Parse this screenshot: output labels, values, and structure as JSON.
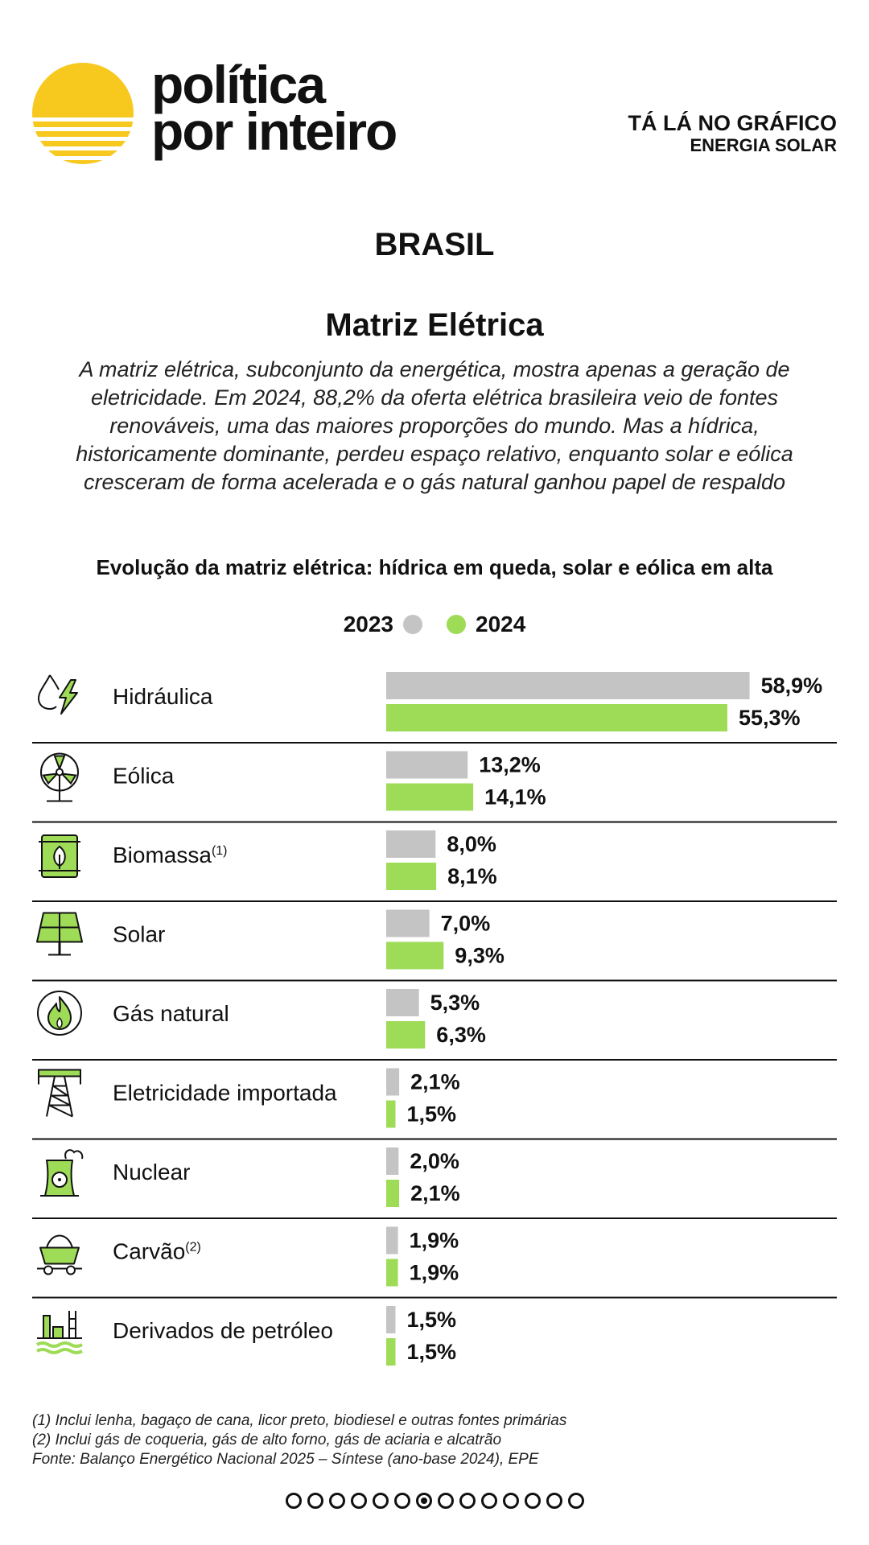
{
  "brand": {
    "line1": "política",
    "line2": "por inteiro"
  },
  "tag": {
    "line1": "TÁ LÁ NO GRÁFICO",
    "line2": "ENERGIA SOLAR"
  },
  "country": "BRASIL",
  "title": "Matriz Elétrica",
  "description": "A matriz elétrica, subconjunto da energética, mostra apenas a geração de eletricidade. Em 2024, 88,2% da oferta elétrica brasileira veio de fontes renováveis, uma das maiores proporções do mundo. Mas a hídrica, historicamente dominante, perdeu espaço relativo, enquanto solar e eólica cresceram de forma acelerada e o gás natural ganhou papel de respaldo",
  "colors": {
    "c2023": "#c4c4c4",
    "c2024": "#9edb57",
    "sun": "#f7c81e",
    "text": "#111111"
  },
  "chart_data": {
    "type": "bar",
    "title": "Evolução da matriz elétrica: hídrica em queda, solar e eólica em alta",
    "unit": "%",
    "xlim": [
      0,
      60
    ],
    "legend": [
      "2023",
      "2024"
    ],
    "categories": [
      {
        "label": "Hidráulica",
        "note": "",
        "icon": "water-lightning-icon"
      },
      {
        "label": "Eólica",
        "note": "",
        "icon": "wind-turbine-icon"
      },
      {
        "label": "Biomassa",
        "note": "(1)",
        "icon": "biomass-barrel-icon"
      },
      {
        "label": "Solar",
        "note": "",
        "icon": "solar-panel-icon"
      },
      {
        "label": "Gás natural",
        "note": "",
        "icon": "gas-flame-icon"
      },
      {
        "label": "Eletricidade importada",
        "note": "",
        "icon": "transmission-tower-icon"
      },
      {
        "label": "Nuclear",
        "note": "",
        "icon": "nuclear-plant-icon"
      },
      {
        "label": "Carvão",
        "note": "(2)",
        "icon": "coal-cart-icon"
      },
      {
        "label": "Derivados de petróleo",
        "note": "",
        "icon": "oil-refinery-icon"
      }
    ],
    "series": [
      {
        "name": "2023",
        "values": [
          58.9,
          13.2,
          8.0,
          7.0,
          5.3,
          2.1,
          2.0,
          1.9,
          1.5
        ],
        "labels": [
          "58,9%",
          "13,2%",
          "8,0%",
          "7,0%",
          "5,3%",
          "2,1%",
          "2,0%",
          "1,9%",
          "1,5%"
        ]
      },
      {
        "name": "2024",
        "values": [
          55.3,
          14.1,
          8.1,
          9.3,
          6.3,
          1.5,
          2.1,
          1.9,
          1.5
        ],
        "labels": [
          "55,3%",
          "14,1%",
          "8,1%",
          "9,3%",
          "6,3%",
          "1,5%",
          "2,1%",
          "1,9%",
          "1,5%"
        ]
      }
    ]
  },
  "notes": [
    "(1) Inclui lenha, bagaço de cana, licor preto, biodiesel e outras fontes primárias",
    "(2) Inclui gás de coqueria, gás de alto forno, gás de aciaria e alcatrão",
    "Fonte: Balanço Energético Nacional 2025 – Síntese (ano-base 2024), EPE"
  ],
  "pager": {
    "total": 14,
    "active": 7
  }
}
